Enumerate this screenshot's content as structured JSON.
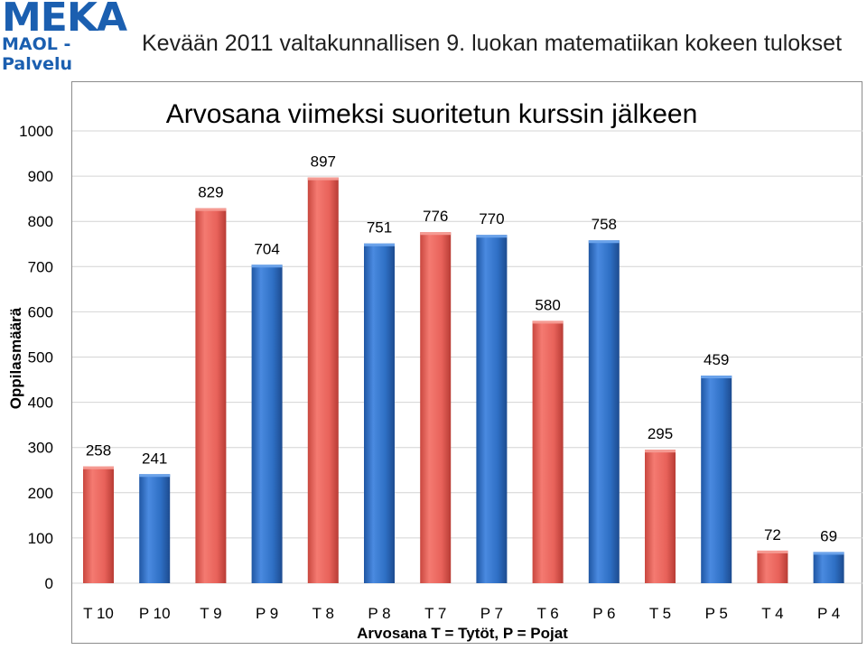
{
  "header": {
    "logo_main": "MEKA",
    "logo_sub": "MAOL - Palvelu",
    "title": "Kevään 2011 valtakunnallisen 9. luokan matematiikan kokeen tulokset"
  },
  "colors": {
    "logo_blue": "#1b5fb0",
    "series_girls": "#e8625a",
    "series_boys": "#2e6fc4",
    "title_text": "#1f1f1f",
    "gridline": "#d4d4d4"
  },
  "chart_data": {
    "type": "bar",
    "title": "Arvosana viimeksi suoritetun kurssin jälkeen",
    "xlabel": "Arvosana T = Tytöt, P = Pojat",
    "ylabel": "Oppilasmäärä",
    "ylim": [
      0,
      1000
    ],
    "yticks": [
      0,
      100,
      200,
      300,
      400,
      500,
      600,
      700,
      800,
      900,
      1000
    ],
    "grid": true,
    "categories": [
      "T 10",
      "P 10",
      "T 9",
      "P 9",
      "T 8",
      "P 8",
      "T 7",
      "P 7",
      "T 6",
      "P 6",
      "T 5",
      "P 5",
      "T 4",
      "P 4"
    ],
    "values": [
      258,
      241,
      829,
      704,
      897,
      751,
      776,
      770,
      580,
      758,
      295,
      459,
      72,
      69
    ],
    "data_labels": [
      "258",
      "241",
      "829",
      "704",
      "897",
      "751",
      "776",
      "770",
      "580",
      "758",
      "295",
      "459",
      "72",
      "69"
    ],
    "bar_groups": [
      "T",
      "P",
      "T",
      "P",
      "T",
      "P",
      "T",
      "P",
      "T",
      "P",
      "T",
      "P",
      "T",
      "P"
    ]
  }
}
